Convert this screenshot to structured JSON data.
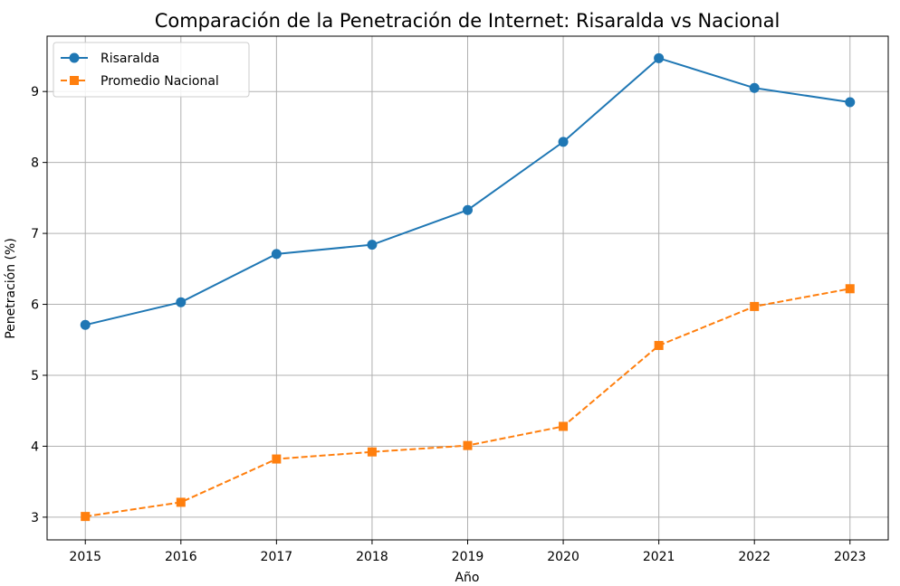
{
  "chart_data": {
    "type": "line",
    "title": "Comparación de la Penetración de Internet: Risaralda vs Nacional",
    "xlabel": "Año",
    "ylabel": "Penetración (%)",
    "x": [
      2015,
      2016,
      2017,
      2018,
      2019,
      2020,
      2021,
      2022,
      2023
    ],
    "xlim": [
      2014.6,
      2023.4
    ],
    "ylim": [
      2.68,
      9.78
    ],
    "yticks": [
      3,
      4,
      5,
      6,
      7,
      8,
      9
    ],
    "grid": true,
    "legend_position": "top-left",
    "series": [
      {
        "name": "Risaralda",
        "values": [
          5.71,
          6.03,
          6.71,
          6.84,
          7.33,
          8.29,
          9.47,
          9.05,
          8.85
        ],
        "color": "#1f77b4",
        "marker": "circle",
        "linestyle": "solid"
      },
      {
        "name": "Promedio Nacional",
        "values": [
          3.01,
          3.21,
          3.82,
          3.92,
          4.01,
          4.28,
          5.42,
          5.97,
          6.22
        ],
        "color": "#ff7f0e",
        "marker": "square",
        "linestyle": "dashed"
      }
    ]
  }
}
